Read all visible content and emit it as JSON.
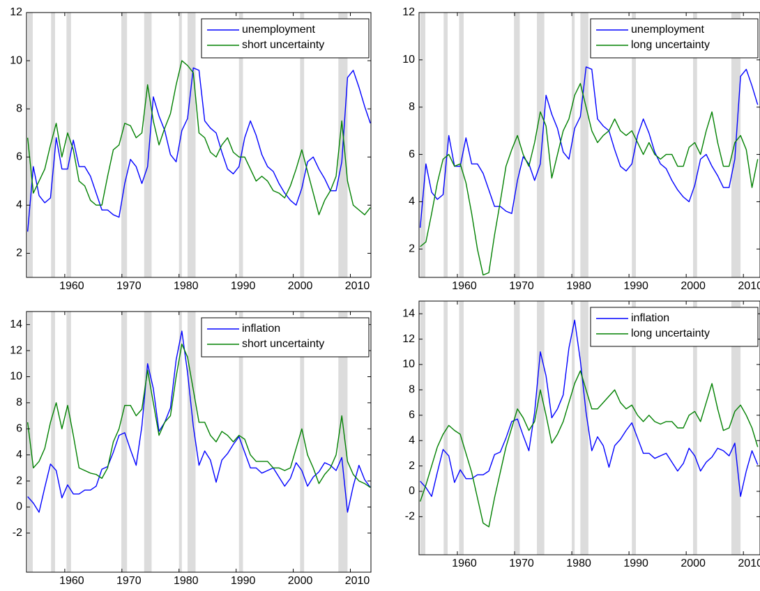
{
  "chart_data": [
    {
      "type": "line",
      "legend_loc": "upper right",
      "xlim": [
        1953.3,
        2013.6
      ],
      "ylim": [
        1,
        12
      ],
      "xticks": [
        1960,
        1970,
        1980,
        1990,
        2000,
        2010
      ],
      "yticks": [
        2,
        4,
        6,
        8,
        10,
        12
      ],
      "shaded_periods": [
        [
          1953.5,
          1954.4
        ],
        [
          1957.6,
          1958.3
        ],
        [
          1960.3,
          1961.1
        ],
        [
          1969.9,
          1970.9
        ],
        [
          1973.9,
          1975.2
        ],
        [
          1980.0,
          1980.5
        ],
        [
          1981.5,
          1982.9
        ],
        [
          1990.5,
          1991.2
        ],
        [
          2001.2,
          2001.9
        ],
        [
          2007.9,
          2009.5
        ]
      ],
      "shade_color": "#dcdcdc",
      "x": [
        1953.5,
        1954.5,
        1955.5,
        1956.5,
        1957.5,
        1958.5,
        1959.5,
        1960.5,
        1961.5,
        1962.5,
        1963.5,
        1964.5,
        1965.5,
        1966.5,
        1967.5,
        1968.5,
        1969.5,
        1970.5,
        1971.5,
        1972.5,
        1973.5,
        1974.5,
        1975.5,
        1976.5,
        1977.5,
        1978.5,
        1979.5,
        1980.5,
        1981.5,
        1982.5,
        1983.5,
        1984.5,
        1985.5,
        1986.5,
        1987.5,
        1988.5,
        1989.5,
        1990.5,
        1991.5,
        1992.5,
        1993.5,
        1994.5,
        1995.5,
        1996.5,
        1997.5,
        1998.5,
        1999.5,
        2000.5,
        2001.5,
        2002.5,
        2003.5,
        2004.5,
        2005.5,
        2006.5,
        2007.5,
        2008.5,
        2009.5,
        2010.5,
        2011.5,
        2012.5,
        2013.5
      ],
      "series": [
        {
          "name": "unemployment",
          "color": "#0000ff",
          "values": [
            2.9,
            5.6,
            4.4,
            4.1,
            4.3,
            6.8,
            5.5,
            5.5,
            6.7,
            5.6,
            5.6,
            5.2,
            4.5,
            3.8,
            3.8,
            3.6,
            3.5,
            4.9,
            5.9,
            5.6,
            4.9,
            5.6,
            8.5,
            7.7,
            7.1,
            6.1,
            5.8,
            7.1,
            7.6,
            9.7,
            9.6,
            7.5,
            7.2,
            7.0,
            6.2,
            5.5,
            5.3,
            5.6,
            6.8,
            7.5,
            6.9,
            6.1,
            5.6,
            5.4,
            4.9,
            4.5,
            4.2,
            4.0,
            4.7,
            5.8,
            6.0,
            5.5,
            5.1,
            4.6,
            4.6,
            5.8,
            9.3,
            9.6,
            8.9,
            8.1,
            7.4
          ]
        },
        {
          "name": "short uncertainty",
          "color": "#008000",
          "values": [
            6.8,
            4.5,
            5.0,
            5.5,
            6.5,
            7.4,
            6.0,
            7.0,
            6.3,
            5.0,
            4.8,
            4.2,
            4.0,
            4.0,
            5.2,
            6.3,
            6.5,
            7.4,
            7.3,
            6.8,
            7.0,
            9.0,
            7.5,
            6.5,
            7.2,
            7.8,
            9.0,
            10.0,
            9.8,
            9.5,
            7.0,
            6.8,
            6.2,
            6.0,
            6.5,
            6.8,
            6.2,
            6.0,
            6.0,
            5.5,
            5.0,
            5.2,
            5.0,
            4.6,
            4.5,
            4.3,
            4.8,
            5.5,
            6.3,
            5.4,
            4.5,
            3.6,
            4.2,
            4.6,
            5.2,
            7.5,
            5.0,
            4.0,
            3.8,
            3.6,
            3.9
          ]
        }
      ]
    },
    {
      "type": "line",
      "legend_loc": "upper right",
      "xlim": [
        1953.3,
        2012.9
      ],
      "ylim": [
        0.8,
        12
      ],
      "xticks": [
        1960,
        1970,
        1980,
        1990,
        2000,
        2010
      ],
      "yticks": [
        2,
        4,
        6,
        8,
        10,
        12
      ],
      "shaded_periods": [
        [
          1953.5,
          1954.4
        ],
        [
          1957.6,
          1958.3
        ],
        [
          1960.3,
          1961.1
        ],
        [
          1969.9,
          1970.9
        ],
        [
          1973.9,
          1975.2
        ],
        [
          1980.0,
          1980.5
        ],
        [
          1981.5,
          1982.9
        ],
        [
          1990.5,
          1991.2
        ],
        [
          2001.2,
          2001.9
        ],
        [
          2007.9,
          2009.5
        ]
      ],
      "shade_color": "#dcdcdc",
      "x": [
        1953.5,
        1954.5,
        1955.5,
        1956.5,
        1957.5,
        1958.5,
        1959.5,
        1960.5,
        1961.5,
        1962.5,
        1963.5,
        1964.5,
        1965.5,
        1966.5,
        1967.5,
        1968.5,
        1969.5,
        1970.5,
        1971.5,
        1972.5,
        1973.5,
        1974.5,
        1975.5,
        1976.5,
        1977.5,
        1978.5,
        1979.5,
        1980.5,
        1981.5,
        1982.5,
        1983.5,
        1984.5,
        1985.5,
        1986.5,
        1987.5,
        1988.5,
        1989.5,
        1990.5,
        1991.5,
        1992.5,
        1993.5,
        1994.5,
        1995.5,
        1996.5,
        1997.5,
        1998.5,
        1999.5,
        2000.5,
        2001.5,
        2002.5,
        2003.5,
        2004.5,
        2005.5,
        2006.5,
        2007.5,
        2008.5,
        2009.5,
        2010.5,
        2011.5,
        2012.5
      ],
      "series": [
        {
          "name": "unemployment",
          "color": "#0000ff",
          "values": [
            2.9,
            5.6,
            4.4,
            4.1,
            4.3,
            6.8,
            5.5,
            5.5,
            6.7,
            5.6,
            5.6,
            5.2,
            4.5,
            3.8,
            3.8,
            3.6,
            3.5,
            4.9,
            5.9,
            5.6,
            4.9,
            5.6,
            8.5,
            7.7,
            7.1,
            6.1,
            5.8,
            7.1,
            7.6,
            9.7,
            9.6,
            7.5,
            7.2,
            7.0,
            6.2,
            5.5,
            5.3,
            5.6,
            6.8,
            7.5,
            6.9,
            6.1,
            5.6,
            5.4,
            4.9,
            4.5,
            4.2,
            4.0,
            4.7,
            5.8,
            6.0,
            5.5,
            5.1,
            4.6,
            4.6,
            5.8,
            9.3,
            9.6,
            8.9,
            8.1
          ]
        },
        {
          "name": "long uncertainty",
          "color": "#008000",
          "values": [
            2.1,
            2.3,
            3.5,
            4.8,
            5.8,
            6.0,
            5.5,
            5.6,
            4.8,
            3.5,
            2.0,
            0.9,
            1.0,
            2.6,
            4.0,
            5.5,
            6.2,
            6.8,
            6.0,
            5.5,
            6.5,
            7.8,
            7.2,
            5.0,
            6.0,
            7.0,
            7.5,
            8.5,
            9.0,
            8.0,
            7.0,
            6.5,
            6.8,
            7.0,
            7.5,
            7.0,
            6.8,
            7.0,
            6.5,
            6.0,
            6.5,
            6.0,
            5.8,
            6.0,
            6.0,
            5.5,
            5.5,
            6.3,
            6.5,
            6.0,
            7.0,
            7.8,
            6.5,
            5.5,
            5.5,
            6.5,
            6.8,
            6.2,
            4.6,
            5.8
          ]
        }
      ]
    },
    {
      "type": "line",
      "legend_loc": "upper right",
      "xlim": [
        1953.3,
        2013.6
      ],
      "ylim": [
        -5,
        15
      ],
      "xticks": [
        1960,
        1970,
        1980,
        1990,
        2000,
        2010
      ],
      "yticks": [
        -2,
        0,
        2,
        4,
        6,
        8,
        10,
        12,
        14
      ],
      "shaded_periods": [
        [
          1953.5,
          1954.4
        ],
        [
          1957.6,
          1958.3
        ],
        [
          1960.3,
          1961.1
        ],
        [
          1969.9,
          1970.9
        ],
        [
          1973.9,
          1975.2
        ],
        [
          1980.0,
          1980.5
        ],
        [
          1981.5,
          1982.9
        ],
        [
          1990.5,
          1991.2
        ],
        [
          2001.2,
          2001.9
        ],
        [
          2007.9,
          2009.5
        ]
      ],
      "shade_color": "#dcdcdc",
      "x": [
        1953.5,
        1954.5,
        1955.5,
        1956.5,
        1957.5,
        1958.5,
        1959.5,
        1960.5,
        1961.5,
        1962.5,
        1963.5,
        1964.5,
        1965.5,
        1966.5,
        1967.5,
        1968.5,
        1969.5,
        1970.5,
        1971.5,
        1972.5,
        1973.5,
        1974.5,
        1975.5,
        1976.5,
        1977.5,
        1978.5,
        1979.5,
        1980.5,
        1981.5,
        1982.5,
        1983.5,
        1984.5,
        1985.5,
        1986.5,
        1987.5,
        1988.5,
        1989.5,
        1990.5,
        1991.5,
        1992.5,
        1993.5,
        1994.5,
        1995.5,
        1996.5,
        1997.5,
        1998.5,
        1999.5,
        2000.5,
        2001.5,
        2002.5,
        2003.5,
        2004.5,
        2005.5,
        2006.5,
        2007.5,
        2008.5,
        2009.5,
        2010.5,
        2011.5,
        2012.5,
        2013.5
      ],
      "series": [
        {
          "name": "inflation",
          "color": "#0000ff",
          "values": [
            0.8,
            0.3,
            -0.4,
            1.5,
            3.3,
            2.8,
            0.7,
            1.7,
            1.0,
            1.0,
            1.3,
            1.3,
            1.6,
            2.9,
            3.1,
            4.2,
            5.5,
            5.7,
            4.4,
            3.2,
            6.2,
            11.0,
            9.1,
            5.8,
            6.5,
            7.6,
            11.3,
            13.5,
            10.3,
            6.2,
            3.2,
            4.3,
            3.6,
            1.9,
            3.6,
            4.1,
            4.8,
            5.4,
            4.2,
            3.0,
            3.0,
            2.6,
            2.8,
            3.0,
            2.3,
            1.6,
            2.2,
            3.4,
            2.8,
            1.6,
            2.3,
            2.7,
            3.4,
            3.2,
            2.8,
            3.8,
            -0.4,
            1.6,
            3.2,
            2.1,
            1.5
          ]
        },
        {
          "name": "short uncertainty",
          "color": "#008000",
          "values": [
            6.5,
            3.0,
            3.5,
            4.5,
            6.5,
            8.0,
            6.0,
            7.8,
            5.5,
            3.0,
            2.8,
            2.6,
            2.5,
            2.2,
            3.0,
            5.0,
            6.0,
            7.8,
            7.8,
            7.0,
            7.5,
            10.5,
            8.0,
            5.5,
            6.5,
            7.0,
            10.0,
            12.5,
            11.5,
            9.0,
            6.5,
            6.5,
            5.5,
            5.0,
            5.8,
            5.5,
            5.0,
            5.5,
            5.2,
            4.0,
            3.5,
            3.5,
            3.5,
            3.0,
            3.0,
            2.8,
            3.0,
            4.5,
            6.0,
            4.0,
            3.0,
            1.8,
            2.5,
            3.0,
            4.0,
            7.0,
            3.5,
            2.5,
            2.0,
            1.8,
            1.5
          ]
        }
      ]
    },
    {
      "type": "line",
      "legend_loc": "upper right",
      "xlim": [
        1953.3,
        2012.9
      ],
      "ylim": [
        -5,
        15
      ],
      "xticks": [
        1960,
        1970,
        1980,
        1990,
        2000,
        2010
      ],
      "yticks": [
        -2,
        0,
        2,
        4,
        6,
        8,
        10,
        12,
        14
      ],
      "shaded_periods": [
        [
          1953.5,
          1954.4
        ],
        [
          1957.6,
          1958.3
        ],
        [
          1960.3,
          1961.1
        ],
        [
          1969.9,
          1970.9
        ],
        [
          1973.9,
          1975.2
        ],
        [
          1980.0,
          1980.5
        ],
        [
          1981.5,
          1982.9
        ],
        [
          1990.5,
          1991.2
        ],
        [
          2001.2,
          2001.9
        ],
        [
          2007.9,
          2009.5
        ]
      ],
      "shade_color": "#dcdcdc",
      "x": [
        1953.5,
        1954.5,
        1955.5,
        1956.5,
        1957.5,
        1958.5,
        1959.5,
        1960.5,
        1961.5,
        1962.5,
        1963.5,
        1964.5,
        1965.5,
        1966.5,
        1967.5,
        1968.5,
        1969.5,
        1970.5,
        1971.5,
        1972.5,
        1973.5,
        1974.5,
        1975.5,
        1976.5,
        1977.5,
        1978.5,
        1979.5,
        1980.5,
        1981.5,
        1982.5,
        1983.5,
        1984.5,
        1985.5,
        1986.5,
        1987.5,
        1988.5,
        1989.5,
        1990.5,
        1991.5,
        1992.5,
        1993.5,
        1994.5,
        1995.5,
        1996.5,
        1997.5,
        1998.5,
        1999.5,
        2000.5,
        2001.5,
        2002.5,
        2003.5,
        2004.5,
        2005.5,
        2006.5,
        2007.5,
        2008.5,
        2009.5,
        2010.5,
        2011.5,
        2012.5
      ],
      "series": [
        {
          "name": "inflation",
          "color": "#0000ff",
          "values": [
            0.8,
            0.3,
            -0.4,
            1.5,
            3.3,
            2.8,
            0.7,
            1.7,
            1.0,
            1.0,
            1.3,
            1.3,
            1.6,
            2.9,
            3.1,
            4.2,
            5.5,
            5.7,
            4.4,
            3.2,
            6.2,
            11.0,
            9.1,
            5.8,
            6.5,
            7.6,
            11.3,
            13.5,
            10.3,
            6.2,
            3.2,
            4.3,
            3.6,
            1.9,
            3.6,
            4.1,
            4.8,
            5.4,
            4.2,
            3.0,
            3.0,
            2.6,
            2.8,
            3.0,
            2.3,
            1.6,
            2.2,
            3.4,
            2.8,
            1.6,
            2.3,
            2.7,
            3.4,
            3.2,
            2.8,
            3.8,
            -0.4,
            1.6,
            3.2,
            2.1
          ]
        },
        {
          "name": "long uncertainty",
          "color": "#008000",
          "values": [
            -0.8,
            0.5,
            2.0,
            3.5,
            4.5,
            5.2,
            4.8,
            4.5,
            3.0,
            1.5,
            -0.5,
            -2.5,
            -2.8,
            -0.5,
            1.5,
            3.5,
            5.0,
            6.5,
            5.8,
            4.8,
            5.5,
            8.0,
            6.0,
            3.8,
            4.5,
            5.5,
            7.0,
            8.5,
            9.5,
            8.0,
            6.5,
            6.5,
            7.0,
            7.5,
            8.0,
            7.0,
            6.5,
            6.8,
            6.0,
            5.5,
            6.0,
            5.5,
            5.3,
            5.5,
            5.5,
            5.0,
            5.0,
            6.0,
            6.3,
            5.5,
            7.0,
            8.5,
            6.5,
            4.8,
            5.0,
            6.3,
            6.8,
            6.0,
            5.0,
            3.5
          ]
        }
      ]
    }
  ]
}
